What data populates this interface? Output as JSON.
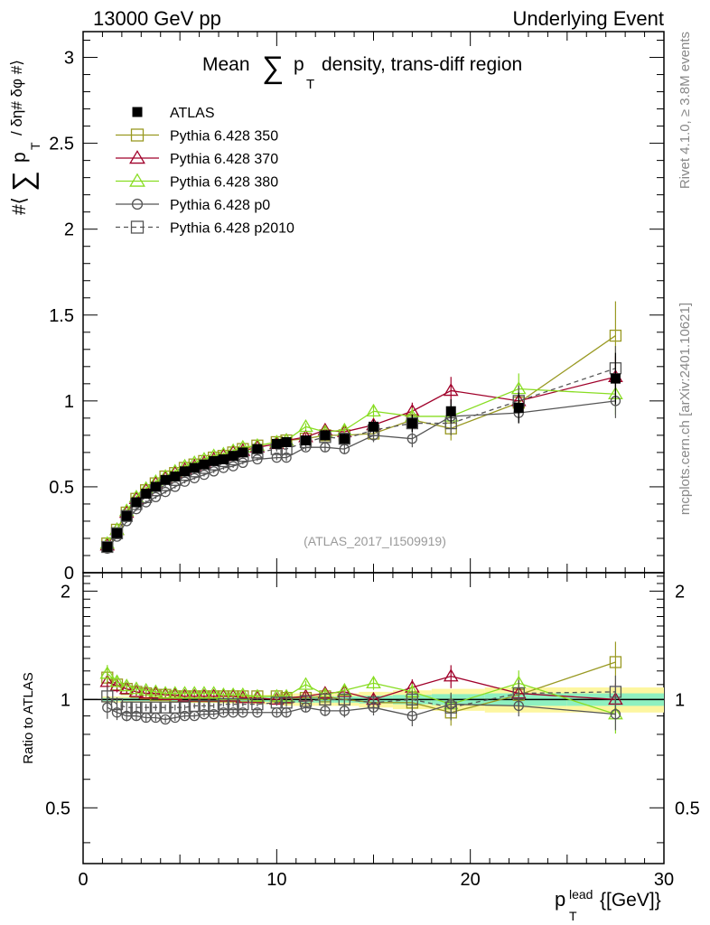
{
  "header": {
    "left": "13000 GeV pp",
    "right": "Underlying Event"
  },
  "side_text": {
    "rivet": "Rivet 4.1.0, ≥ 3.8M events",
    "mcplots": "mcplots.cern.ch [arXiv:2401.10621]"
  },
  "chart_data": {
    "type": "line",
    "title": "Mean ∑ p_T density, trans-diff region",
    "title_parts": {
      "pre": "Mean",
      "sum": "∑",
      "p": "p",
      "sub": "T",
      "post": "density, trans-diff region"
    },
    "analysis_id": "(ATLAS_2017_I1509919)",
    "ylabel_parts": {
      "pre": "#⟨",
      "sum": "∑",
      "p": "p",
      "sub": "T",
      "post": "/ δη# δφ #⟩"
    },
    "xlabel_parts": {
      "p": "p",
      "sup": "lead",
      "sub": "T",
      "post": "{[GeV]}"
    },
    "ratio_ylabel": "Ratio to ATLAS",
    "xlim": [
      0,
      30
    ],
    "ylim": [
      0,
      3.15
    ],
    "ratio_ylim": [
      0.35,
      2.25
    ],
    "x_ticks": [
      "0",
      "10",
      "20",
      "30"
    ],
    "y_ticks": [
      "0",
      "0.5",
      "1",
      "1.5",
      "2",
      "2.5",
      "3"
    ],
    "ratio_ticks": [
      "0.5",
      "1",
      "2"
    ],
    "x": [
      1.25,
      1.75,
      2.25,
      2.75,
      3.25,
      3.75,
      4.25,
      4.75,
      5.25,
      5.75,
      6.25,
      6.75,
      7.25,
      7.75,
      8.25,
      9,
      10,
      10.5,
      11.5,
      12.5,
      13.5,
      15,
      17,
      19,
      22.5,
      27.5
    ],
    "series": [
      {
        "name": "ATLAS",
        "color": "#000000",
        "marker": "filled-square",
        "values": [
          0.15,
          0.23,
          0.33,
          0.41,
          0.46,
          0.5,
          0.54,
          0.56,
          0.59,
          0.61,
          0.63,
          0.65,
          0.66,
          0.68,
          0.7,
          0.72,
          0.75,
          0.76,
          0.77,
          0.8,
          0.78,
          0.85,
          0.87,
          0.94,
          0.96,
          1.13
        ],
        "errors": [
          0.01,
          0.01,
          0.01,
          0.01,
          0.01,
          0.01,
          0.01,
          0.01,
          0.01,
          0.01,
          0.01,
          0.01,
          0.01,
          0.01,
          0.01,
          0.01,
          0.015,
          0.02,
          0.02,
          0.025,
          0.03,
          0.04,
          0.05,
          0.07,
          0.09,
          0.15
        ],
        "ratio_band_1": [
          0.01,
          0.01,
          0.01,
          0.01,
          0.01,
          0.01,
          0.01,
          0.01,
          0.01,
          0.01,
          0.01,
          0.01,
          0.012,
          0.012,
          0.012,
          0.015,
          0.015,
          0.02,
          0.02,
          0.02,
          0.02,
          0.025,
          0.03,
          0.035,
          0.04,
          0.04
        ],
        "ratio_band_2": [
          0.02,
          0.02,
          0.02,
          0.02,
          0.02,
          0.02,
          0.02,
          0.02,
          0.02,
          0.02,
          0.02,
          0.02,
          0.024,
          0.024,
          0.024,
          0.03,
          0.03,
          0.04,
          0.04,
          0.04,
          0.04,
          0.05,
          0.06,
          0.07,
          0.08,
          0.08
        ]
      },
      {
        "name": "Pythia 6.428 350",
        "color": "#999922",
        "marker": "open-square",
        "dash": false,
        "values": [
          0.17,
          0.25,
          0.35,
          0.43,
          0.48,
          0.52,
          0.56,
          0.58,
          0.61,
          0.63,
          0.65,
          0.67,
          0.68,
          0.7,
          0.72,
          0.74,
          0.76,
          0.77,
          0.78,
          0.8,
          0.8,
          0.81,
          0.89,
          0.84,
          0.99,
          1.38
        ],
        "ratio": [
          1.15,
          1.1,
          1.07,
          1.05,
          1.04,
          1.03,
          1.03,
          1.02,
          1.02,
          1.02,
          1.02,
          1.02,
          1.02,
          1.02,
          1.02,
          1.02,
          1.02,
          1.01,
          1.01,
          1.02,
          1.0,
          0.98,
          0.98,
          0.92,
          1.03,
          1.27
        ],
        "errors": [
          0.01,
          0.01,
          0.01,
          0.01,
          0.01,
          0.01,
          0.01,
          0.01,
          0.01,
          0.01,
          0.01,
          0.01,
          0.01,
          0.01,
          0.01,
          0.01,
          0.015,
          0.02,
          0.02,
          0.025,
          0.03,
          0.04,
          0.05,
          0.07,
          0.09,
          0.2
        ]
      },
      {
        "name": "Pythia 6.428 370",
        "color": "#a0002a",
        "marker": "open-triangle",
        "dash": false,
        "values": [
          0.16,
          0.25,
          0.35,
          0.43,
          0.48,
          0.52,
          0.55,
          0.58,
          0.6,
          0.62,
          0.64,
          0.66,
          0.68,
          0.7,
          0.71,
          0.73,
          0.75,
          0.77,
          0.79,
          0.83,
          0.82,
          0.86,
          0.94,
          1.06,
          1.0,
          1.14
        ],
        "ratio": [
          1.12,
          1.09,
          1.07,
          1.05,
          1.04,
          1.04,
          1.03,
          1.03,
          1.02,
          1.02,
          1.02,
          1.02,
          1.02,
          1.02,
          1.01,
          1.01,
          1.0,
          1.01,
          1.02,
          1.04,
          1.05,
          1.0,
          1.08,
          1.16,
          1.04,
          1.0
        ],
        "errors": [
          0.01,
          0.01,
          0.01,
          0.01,
          0.01,
          0.01,
          0.01,
          0.01,
          0.01,
          0.01,
          0.01,
          0.01,
          0.01,
          0.01,
          0.01,
          0.01,
          0.015,
          0.02,
          0.02,
          0.025,
          0.03,
          0.04,
          0.05,
          0.08,
          0.09,
          0.12
        ]
      },
      {
        "name": "Pythia 6.428 380",
        "color": "#88dd22",
        "marker": "open-triangle",
        "dash": false,
        "values": [
          0.17,
          0.25,
          0.36,
          0.44,
          0.49,
          0.53,
          0.56,
          0.59,
          0.62,
          0.64,
          0.66,
          0.68,
          0.69,
          0.71,
          0.73,
          0.74,
          0.76,
          0.77,
          0.85,
          0.82,
          0.83,
          0.94,
          0.91,
          0.91,
          1.07,
          1.04
        ],
        "ratio": [
          1.18,
          1.12,
          1.09,
          1.07,
          1.06,
          1.05,
          1.04,
          1.04,
          1.04,
          1.04,
          1.04,
          1.04,
          1.03,
          1.03,
          1.03,
          1.02,
          1.02,
          1.02,
          1.1,
          1.03,
          1.06,
          1.11,
          1.05,
          0.97,
          1.11,
          0.91
        ],
        "errors": [
          0.01,
          0.01,
          0.01,
          0.01,
          0.01,
          0.01,
          0.01,
          0.01,
          0.01,
          0.01,
          0.01,
          0.01,
          0.01,
          0.01,
          0.01,
          0.01,
          0.015,
          0.02,
          0.02,
          0.025,
          0.03,
          0.04,
          0.05,
          0.07,
          0.09,
          0.12
        ]
      },
      {
        "name": "Pythia 6.428 p0",
        "color": "#555555",
        "marker": "open-circle",
        "dash": false,
        "values": [
          0.14,
          0.21,
          0.3,
          0.37,
          0.41,
          0.44,
          0.47,
          0.5,
          0.53,
          0.55,
          0.57,
          0.59,
          0.61,
          0.62,
          0.64,
          0.66,
          0.67,
          0.67,
          0.73,
          0.73,
          0.72,
          0.8,
          0.78,
          0.91,
          0.93,
          1.0
        ],
        "ratio": [
          0.95,
          0.92,
          0.9,
          0.9,
          0.89,
          0.89,
          0.88,
          0.89,
          0.9,
          0.9,
          0.91,
          0.91,
          0.92,
          0.92,
          0.92,
          0.92,
          0.92,
          0.92,
          0.95,
          0.93,
          0.93,
          0.95,
          0.9,
          0.97,
          0.96,
          0.91
        ],
        "errors": [
          0.01,
          0.01,
          0.01,
          0.01,
          0.01,
          0.01,
          0.01,
          0.01,
          0.01,
          0.01,
          0.01,
          0.01,
          0.01,
          0.01,
          0.01,
          0.01,
          0.015,
          0.02,
          0.02,
          0.025,
          0.03,
          0.04,
          0.05,
          0.07,
          0.06,
          0.1
        ]
      },
      {
        "name": "Pythia 6.428 p2010",
        "color": "#555555",
        "marker": "open-square",
        "dash": true,
        "values": [
          0.15,
          0.23,
          0.33,
          0.4,
          0.44,
          0.48,
          0.51,
          0.54,
          0.57,
          0.59,
          0.61,
          0.63,
          0.65,
          0.66,
          0.68,
          0.7,
          0.72,
          0.72,
          0.76,
          0.79,
          0.78,
          0.83,
          0.87,
          0.87,
          1.0,
          1.19
        ],
        "ratio": [
          1.02,
          0.97,
          0.95,
          0.95,
          0.95,
          0.95,
          0.95,
          0.95,
          0.95,
          0.96,
          0.96,
          0.96,
          0.97,
          0.97,
          0.97,
          0.97,
          0.98,
          0.98,
          0.99,
          1.0,
          1.0,
          0.98,
          1.0,
          0.95,
          1.04,
          1.05
        ],
        "errors": [
          0.01,
          0.01,
          0.01,
          0.01,
          0.01,
          0.01,
          0.01,
          0.01,
          0.01,
          0.01,
          0.01,
          0.01,
          0.01,
          0.01,
          0.01,
          0.01,
          0.015,
          0.02,
          0.02,
          0.025,
          0.03,
          0.04,
          0.05,
          0.07,
          0.09,
          0.13
        ]
      }
    ]
  }
}
